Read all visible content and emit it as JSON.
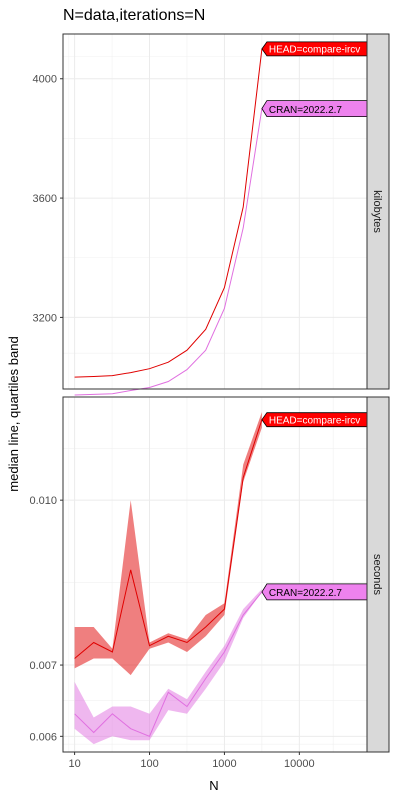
{
  "chart_data": {
    "type": "line",
    "title": "N=data,iterations=N",
    "xlabel": "N",
    "ylabel": "median line, quartiles band",
    "x_scale": "log10",
    "xlim": [
      7,
      80000
    ],
    "x_ticks": [
      10,
      100,
      1000,
      10000
    ],
    "x_tick_labels": [
      "10",
      "100",
      "1000",
      "10000"
    ],
    "grid": true,
    "legend": "direct labels at line ends",
    "colors": {
      "HEAD=compare-ircv": "#e00000",
      "CRAN=2022.2.7": "#e070e0"
    },
    "panels": [
      {
        "strip": "kilobytes",
        "y_scale": "linear",
        "ylim": [
          2960,
          4150
        ],
        "y_ticks": [
          3200,
          3600,
          4000
        ],
        "y_tick_labels": [
          "3200",
          "3600",
          "4000"
        ],
        "series": [
          {
            "name": "HEAD=compare-ircv",
            "label_bg": "#ff0000",
            "label_fg": "#ffffff",
            "x": [
              10,
              18,
              32,
              56,
              100,
              178,
              316,
              562,
              1000,
              1778,
              3162
            ],
            "median": [
              3000,
              3002,
              3005,
              3015,
              3028,
              3050,
              3090,
              3160,
              3300,
              3570,
              4100
            ]
          },
          {
            "name": "CRAN=2022.2.7",
            "label_bg": "#ee82ee",
            "label_fg": "#000000",
            "x": [
              10,
              18,
              32,
              56,
              100,
              178,
              316,
              562,
              1000,
              1778,
              3162
            ],
            "median": [
              2940,
              2942,
              2944,
              2955,
              2965,
              2985,
              3025,
              3090,
              3230,
              3500,
              3900
            ]
          }
        ]
      },
      {
        "strip": "seconds",
        "y_scale": "log10",
        "ylim": [
          0.0058,
          0.0125
        ],
        "y_ticks": [
          0.006,
          0.007,
          0.01
        ],
        "y_tick_labels": [
          "0.006",
          "0.007",
          "0.010"
        ],
        "series": [
          {
            "name": "HEAD=compare-ircv",
            "label_bg": "#ff0000",
            "label_fg": "#ffffff",
            "x": [
              10,
              18,
              32,
              56,
              100,
              178,
              316,
              562,
              1000,
              1778,
              3162
            ],
            "median": [
              0.0071,
              0.00735,
              0.0072,
              0.0086,
              0.0073,
              0.00745,
              0.00735,
              0.0076,
              0.0079,
              0.0105,
              0.0119
            ],
            "q1": [
              0.00695,
              0.0071,
              0.0071,
              0.00685,
              0.00725,
              0.00735,
              0.0072,
              0.00745,
              0.0078,
              0.0104,
              0.0117
            ],
            "q3": [
              0.0076,
              0.0076,
              0.00725,
              0.01,
              0.00735,
              0.0075,
              0.0074,
              0.0078,
              0.008,
              0.0108,
              0.0121
            ]
          },
          {
            "name": "CRAN=2022.2.7",
            "label_bg": "#ee82ee",
            "label_fg": "#000000",
            "x": [
              10,
              18,
              32,
              56,
              100,
              178,
              316,
              562,
              1000,
              1778,
              3162
            ],
            "median": [
              0.0063,
              0.00605,
              0.0063,
              0.0061,
              0.006,
              0.0066,
              0.0064,
              0.0068,
              0.0072,
              0.0078,
              0.0082
            ],
            "q1": [
              0.0061,
              0.0059,
              0.006,
              0.00595,
              0.00595,
              0.00635,
              0.0063,
              0.00665,
              0.00705,
              0.00775,
              0.0082
            ],
            "q3": [
              0.00675,
              0.00625,
              0.0064,
              0.0064,
              0.0063,
              0.00665,
              0.0065,
              0.0069,
              0.0073,
              0.0079,
              0.00825
            ]
          }
        ]
      }
    ]
  }
}
